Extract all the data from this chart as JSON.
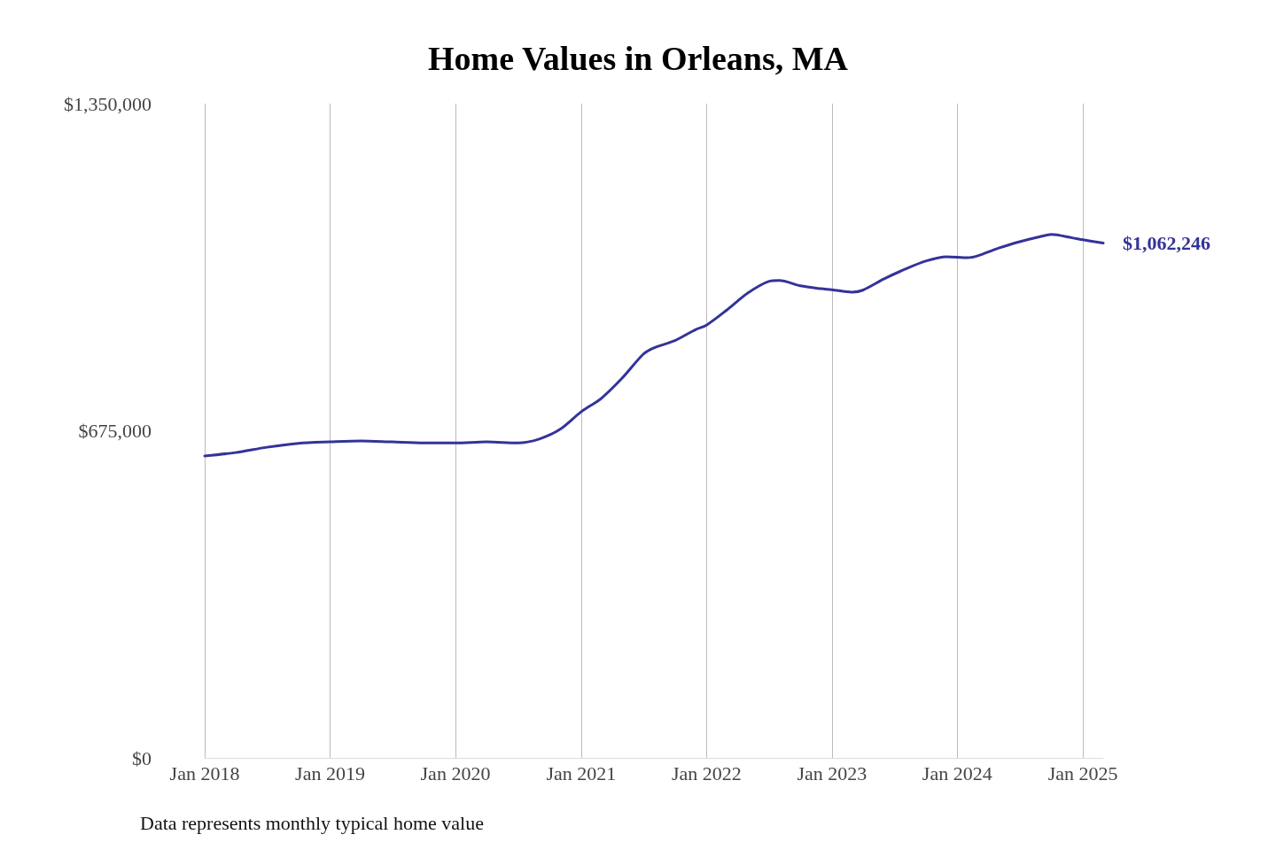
{
  "chart_data": {
    "type": "line",
    "title": "Home Values in Orleans, MA",
    "x": [
      "2018-01",
      "2018-04",
      "2018-07",
      "2018-10",
      "2019-01",
      "2019-04",
      "2019-07",
      "2019-10",
      "2020-01",
      "2020-04",
      "2020-07",
      "2020-09",
      "2020-11",
      "2021-01",
      "2021-03",
      "2021-05",
      "2021-07",
      "2021-08",
      "2021-10",
      "2021-12",
      "2022-01",
      "2022-03",
      "2022-05",
      "2022-07",
      "2022-08",
      "2022-10",
      "2022-12",
      "2023-01",
      "2023-03",
      "2023-04",
      "2023-06",
      "2023-08",
      "2023-10",
      "2023-12",
      "2024-02",
      "2024-03",
      "2024-05",
      "2024-07",
      "2024-09",
      "2024-10",
      "2024-12",
      "2025-01",
      "2025-03"
    ],
    "series": [
      {
        "color": "#33339a",
        "values": [
          623000,
          630000,
          641000,
          649000,
          652000,
          654000,
          652000,
          650000,
          650000,
          652000,
          650000,
          658000,
          678000,
          714000,
          742000,
          784000,
          833000,
          846000,
          861000,
          884000,
          893000,
          924000,
          959000,
          983000,
          985000,
          974000,
          968000,
          966000,
          961000,
          965000,
          988000,
          1008000,
          1025000,
          1034000,
          1032000,
          1036000,
          1052000,
          1065000,
          1076000,
          1080000,
          1073000,
          1069000,
          1062246
        ],
        "value_labels": [
          null,
          null,
          null,
          null,
          null,
          null,
          null,
          null,
          null,
          null,
          null,
          null,
          null,
          null,
          null,
          null,
          null,
          null,
          null,
          null,
          null,
          null,
          null,
          null,
          null,
          null,
          null,
          null,
          null,
          null,
          null,
          null,
          null,
          null,
          null,
          null,
          null,
          null,
          null,
          null,
          null,
          null,
          "$1,062,246"
        ]
      }
    ],
    "ylim": [
      0,
      1350000
    ],
    "yticks": [
      {
        "value": 0,
        "label": "$0"
      },
      {
        "value": 675000,
        "label": "$675,000"
      },
      {
        "value": 1350000,
        "label": "$1,350,000"
      }
    ],
    "xticks": [
      {
        "value": "2018-01",
        "label": "Jan 2018"
      },
      {
        "value": "2019-01",
        "label": "Jan 2019"
      },
      {
        "value": "2020-01",
        "label": "Jan 2020"
      },
      {
        "value": "2021-01",
        "label": "Jan 2021"
      },
      {
        "value": "2022-01",
        "label": "Jan 2022"
      },
      {
        "value": "2023-01",
        "label": "Jan 2023"
      },
      {
        "value": "2024-01",
        "label": "Jan 2024"
      },
      {
        "value": "2025-01",
        "label": "Jan 2025"
      }
    ],
    "xlim": [
      "2018-01",
      "2025-03"
    ],
    "grid": "x",
    "marker": "none",
    "line_style": "solid",
    "annotations": [
      "Data represents monthly typical home value"
    ]
  }
}
